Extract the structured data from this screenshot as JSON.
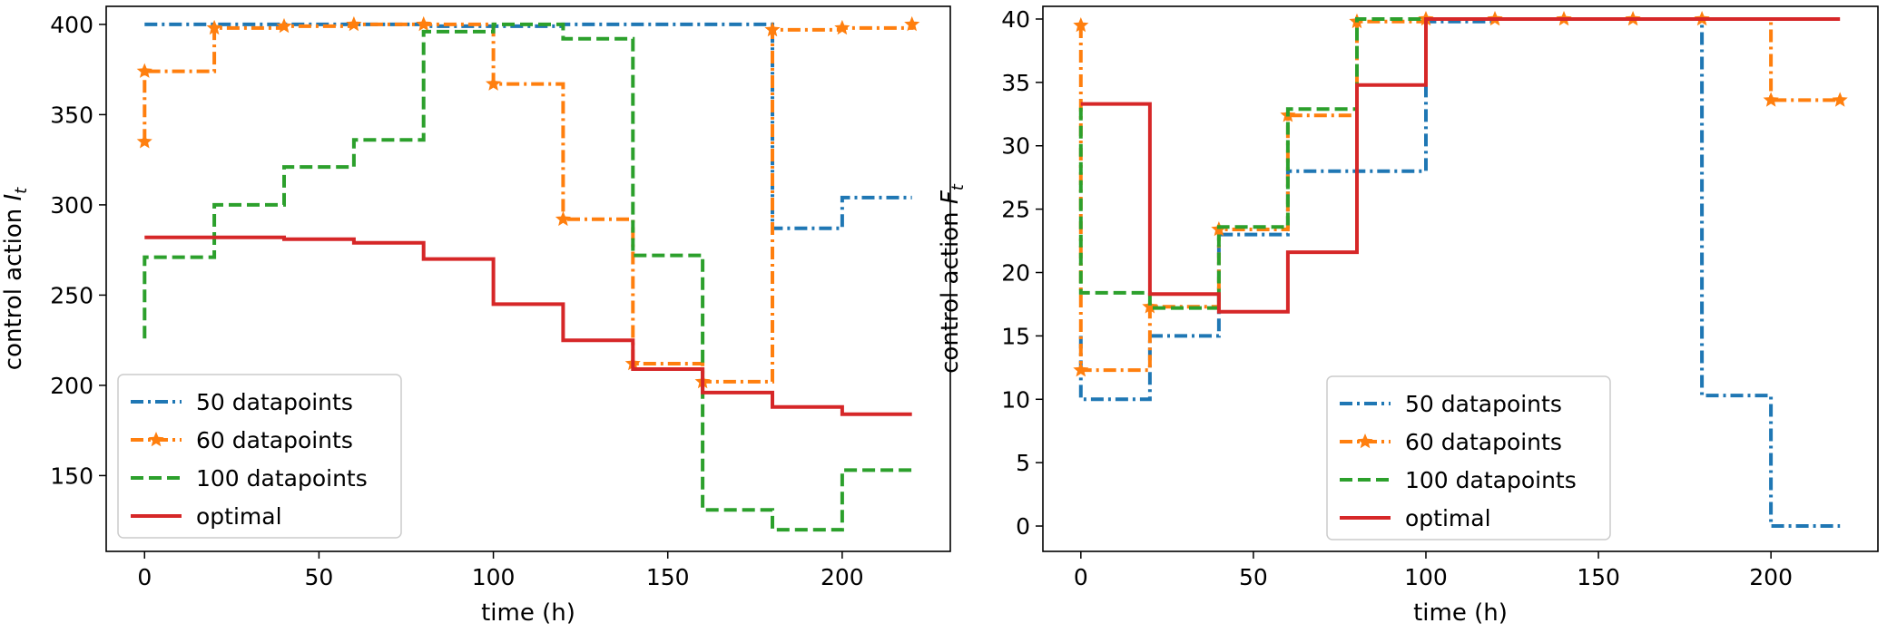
{
  "chart_data": [
    {
      "type": "line",
      "step": "post",
      "xlabel": "time (h)",
      "ylabel": "control action I_t",
      "ylabel_main": "control action ",
      "ylabel_sub": "t",
      "ylabel_var": "I",
      "xlim": [
        -11,
        231
      ],
      "ylim": [
        108,
        410
      ],
      "xticks": [
        0,
        50,
        100,
        150,
        200
      ],
      "yticks": [
        150,
        200,
        250,
        300,
        350,
        400
      ],
      "grid": false,
      "legend_position": "lower-left",
      "series": [
        {
          "name": "50 datapoints",
          "color": "#1f77b4",
          "style": "dashdot",
          "x": [
            0,
            20,
            40,
            60,
            80,
            100,
            120,
            140,
            160,
            180,
            200,
            220
          ],
          "y": [
            400,
            400,
            400,
            400,
            399,
            399,
            400,
            400,
            400,
            287,
            304,
            304
          ]
        },
        {
          "name": "60 datapoints",
          "color": "#ff7f0e",
          "style": "dashdot-star",
          "x": [
            0,
            0,
            20,
            40,
            60,
            80,
            100,
            120,
            140,
            160,
            180,
            200,
            220
          ],
          "y": [
            335,
            374,
            398,
            399,
            400,
            400,
            367,
            292,
            212,
            202,
            397,
            398,
            400
          ]
        },
        {
          "name": "100 datapoints",
          "color": "#2ca02c",
          "style": "dashed",
          "x": [
            0,
            0,
            20,
            40,
            60,
            80,
            100,
            120,
            140,
            160,
            180,
            200,
            220
          ],
          "y": [
            226,
            271,
            300,
            321,
            336,
            396,
            400,
            392,
            272,
            131,
            120,
            153,
            153
          ]
        },
        {
          "name": "optimal",
          "color": "#d62728",
          "style": "solid",
          "x": [
            0,
            20,
            40,
            60,
            80,
            100,
            120,
            140,
            160,
            180,
            200,
            220
          ],
          "y": [
            282,
            282,
            281,
            279,
            270,
            245,
            225,
            209,
            196,
            188,
            184,
            184
          ]
        }
      ]
    },
    {
      "type": "line",
      "step": "post",
      "xlabel": "time (h)",
      "ylabel": "control action F_t",
      "ylabel_main": "control action ",
      "ylabel_sub": "t",
      "ylabel_var": "F",
      "xlim": [
        -11,
        231
      ],
      "ylim": [
        -2,
        41
      ],
      "xticks": [
        0,
        50,
        100,
        150,
        200
      ],
      "yticks": [
        0,
        5,
        10,
        15,
        20,
        25,
        30,
        35,
        40
      ],
      "grid": false,
      "legend_position": "lower-center",
      "series": [
        {
          "name": "50 datapoints",
          "color": "#1f77b4",
          "style": "dashdot",
          "x": [
            0,
            0,
            20,
            40,
            60,
            80,
            100,
            120,
            140,
            160,
            180,
            200,
            220
          ],
          "y": [
            15,
            10,
            15,
            23,
            28,
            28,
            39.8,
            40,
            40,
            40,
            10.3,
            0,
            0
          ]
        },
        {
          "name": "60 datapoints",
          "color": "#ff7f0e",
          "style": "dashdot-star",
          "x": [
            0,
            0,
            20,
            40,
            60,
            80,
            100,
            120,
            140,
            160,
            180,
            200,
            220
          ],
          "y": [
            39.5,
            12.3,
            17.3,
            23.4,
            32.4,
            39.8,
            40,
            40,
            40,
            40,
            40,
            33.6,
            33.6
          ]
        },
        {
          "name": "100 datapoints",
          "color": "#2ca02c",
          "style": "dashed",
          "x": [
            0,
            0,
            20,
            40,
            60,
            80,
            100,
            120,
            140,
            160,
            180,
            200,
            220
          ],
          "y": [
            33,
            18.4,
            17.2,
            23.6,
            32.9,
            40,
            40,
            40,
            40,
            40,
            40,
            40,
            40
          ]
        },
        {
          "name": "optimal",
          "color": "#d62728",
          "style": "solid",
          "x": [
            0,
            20,
            40,
            60,
            80,
            100,
            120,
            140,
            160,
            180,
            200,
            220
          ],
          "y": [
            33.3,
            18.3,
            16.9,
            21.6,
            34.8,
            40,
            40,
            40,
            40,
            40,
            40,
            40
          ]
        }
      ]
    }
  ]
}
